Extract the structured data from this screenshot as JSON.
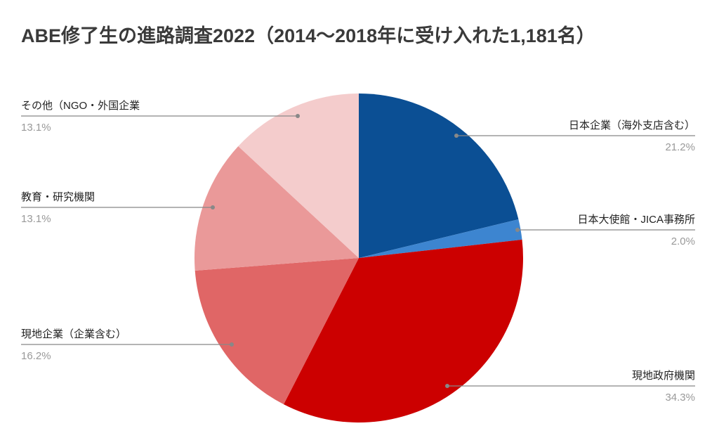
{
  "chart_data": {
    "type": "pie",
    "title": "ABE修了生の進路調査2022（2014～2018年に受け入れた1,181名）",
    "categories": [
      "日本企業（海外支店含む）",
      "日本大使館・JICA事務所",
      "現地政府機関",
      "現地企業（企業含む）",
      "教育・研究機関",
      "その他（NGO・外国企業"
    ],
    "values": [
      21.2,
      2.0,
      34.3,
      16.2,
      13.1,
      13.1
    ],
    "value_labels": [
      "21.2%",
      "2.0%",
      "34.3%",
      "16.2%",
      "13.1%",
      "13.1%"
    ],
    "colors": [
      "#0b4f94",
      "#3d85d0",
      "#cc0000",
      "#e06666",
      "#ea9999",
      "#f4cccc"
    ]
  }
}
